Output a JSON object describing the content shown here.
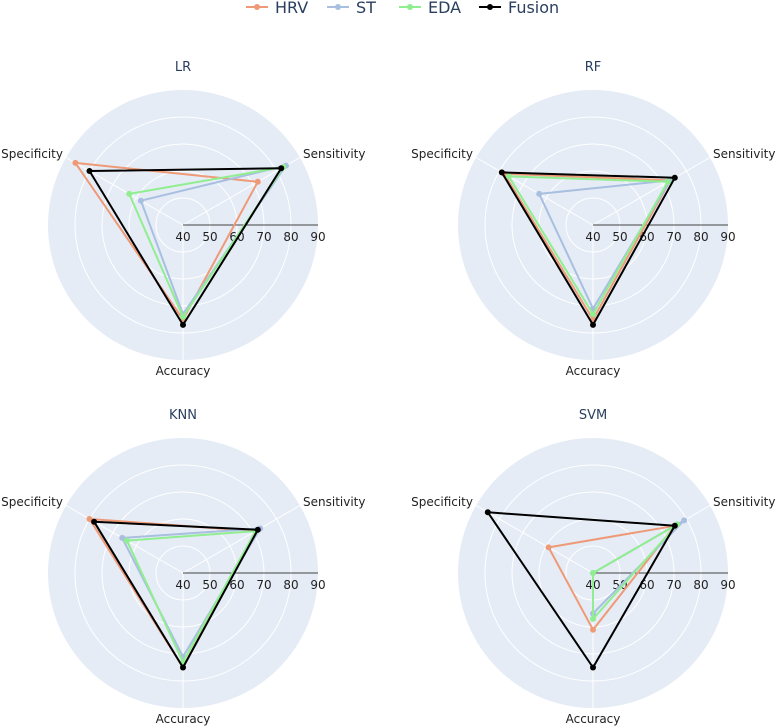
{
  "chart_data": {
    "type": "radar",
    "legend": {
      "placement": "top-center",
      "orientation": "horizontal",
      "entries": [
        {
          "name": "HRV",
          "color": "#ef9a77"
        },
        {
          "name": "ST",
          "color": "#a8bfe0"
        },
        {
          "name": "EDA",
          "color": "#90ee90"
        },
        {
          "name": "Fusion",
          "color": "#000000"
        }
      ]
    },
    "axes": [
      "Sensitivity",
      "Specificity",
      "Accuracy"
    ],
    "radial_range": [
      40,
      90
    ],
    "radial_ticks": [
      40,
      50,
      60,
      70,
      80,
      90
    ],
    "background_color": "#e5ecf6",
    "grid_color": "#ffffff",
    "subplots": [
      {
        "title": "LR",
        "series": [
          {
            "name": "HRV",
            "values": [
              72,
              86,
              75
            ]
          },
          {
            "name": "ST",
            "values": [
              84,
              58,
              73
            ]
          },
          {
            "name": "EDA",
            "values": [
              83,
              63,
              74
            ]
          },
          {
            "name": "Fusion",
            "values": [
              82,
              80,
              77
            ]
          }
        ]
      },
      {
        "title": "RF",
        "series": [
          {
            "name": "HRV",
            "values": [
              73,
              78,
              75
            ]
          },
          {
            "name": "ST",
            "values": [
              73,
              63,
              71
            ]
          },
          {
            "name": "EDA",
            "values": [
              72,
              76,
              73
            ]
          },
          {
            "name": "Fusion",
            "values": [
              75,
              79,
              77
            ]
          }
        ]
      },
      {
        "title": "KNN",
        "series": [
          {
            "name": "HRV",
            "values": [
              71,
              80,
              75
            ]
          },
          {
            "name": "ST",
            "values": [
              73,
              66,
              71
            ]
          },
          {
            "name": "EDA",
            "values": [
              71,
              64,
              73
            ]
          },
          {
            "name": "Fusion",
            "values": [
              72,
              78,
              75
            ]
          }
        ]
      },
      {
        "title": "SVM",
        "series": [
          {
            "name": "HRV",
            "values": [
              75,
              59,
              61
            ]
          },
          {
            "name": "ST",
            "values": [
              79,
              40,
              55
            ]
          },
          {
            "name": "EDA",
            "values": [
              76,
              40,
              57
            ]
          },
          {
            "name": "Fusion",
            "values": [
              75,
              85,
              75
            ]
          }
        ]
      }
    ]
  }
}
